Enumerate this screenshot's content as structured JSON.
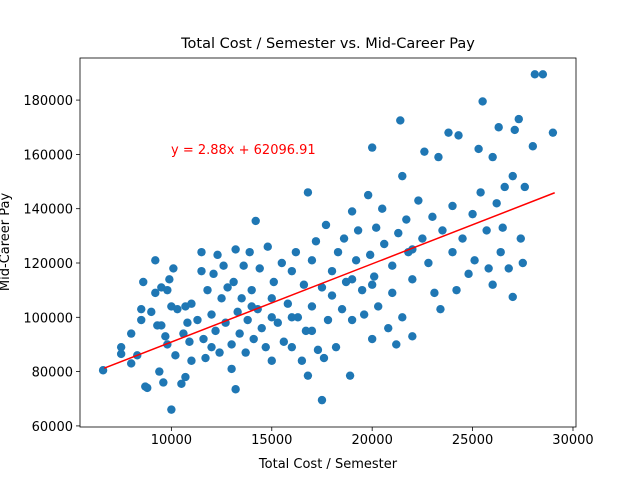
{
  "chart_data": {
    "type": "scatter",
    "title": "Total Cost / Semester vs. Mid-Career Pay",
    "x_label": "Total Cost / Semester",
    "y_label": "Mid-Career Pay",
    "annotation": "y = 2.88x + 62096.91",
    "annotation_color": "#ff0000",
    "xlim": [
      5450,
      30150
    ],
    "ylim": [
      59600,
      195500
    ],
    "xticks": [
      10000,
      15000,
      20000,
      25000,
      30000
    ],
    "yticks": [
      60000,
      80000,
      100000,
      120000,
      140000,
      160000,
      180000
    ],
    "series": [
      {
        "color": "#1f77b4",
        "x": [
          6600,
          7500,
          7500,
          8000,
          8000,
          8300,
          8500,
          8500,
          8600,
          8700,
          8800,
          9000,
          9200,
          9200,
          9300,
          9400,
          9500,
          9500,
          9600,
          9700,
          9800,
          9800,
          9900,
          10000,
          10000,
          10100,
          10200,
          10300,
          10500,
          10600,
          10700,
          10700,
          10800,
          10900,
          11000,
          11000,
          11300,
          11500,
          11500,
          11600,
          11700,
          11800,
          12000,
          12100,
          12200,
          12300,
          12400,
          12500,
          12600,
          12700,
          12800,
          13000,
          13000,
          13100,
          13200,
          13200,
          13300,
          13400,
          13500,
          13600,
          13700,
          13800,
          13900,
          14000,
          14100,
          14200,
          14300,
          14400,
          14500,
          14700,
          14800,
          15000,
          15000,
          15100,
          15300,
          15500,
          15600,
          15800,
          16000,
          16000,
          16200,
          16300,
          16500,
          16600,
          16700,
          16800,
          16800,
          17000,
          17000,
          17200,
          17300,
          17500,
          17500,
          17600,
          17700,
          17800,
          18000,
          18000,
          18200,
          18300,
          18500,
          18600,
          18700,
          18900,
          19000,
          19000,
          19200,
          19300,
          19500,
          19600,
          19800,
          19900,
          20000,
          20000,
          20100,
          20200,
          20300,
          20500,
          20600,
          20800,
          21000,
          21000,
          21200,
          21300,
          21400,
          21500,
          21500,
          21700,
          21800,
          22000,
          22000,
          22300,
          22500,
          22600,
          22800,
          23000,
          23100,
          23300,
          23400,
          23500,
          23800,
          24000,
          24000,
          24200,
          24300,
          24500,
          25000,
          25100,
          25300,
          25400,
          25500,
          25700,
          25800,
          26000,
          26000,
          26200,
          26300,
          26400,
          26600,
          26800,
          27000,
          27000,
          27100,
          27300,
          27400,
          27500,
          27600,
          28000,
          28100,
          28500,
          29000,
          26500,
          22000,
          19000,
          17000,
          15000,
          12000,
          14000,
          16000,
          20000,
          24800
        ],
        "values": [
          80500,
          89000,
          86500,
          94000,
          83000,
          86000,
          103000,
          99000,
          113000,
          74500,
          74000,
          102000,
          121000,
          109000,
          97000,
          80000,
          111000,
          97000,
          76000,
          93000,
          110000,
          90000,
          114000,
          104000,
          66000,
          118000,
          86000,
          103000,
          75500,
          94000,
          104000,
          78000,
          98000,
          91000,
          105000,
          84000,
          99000,
          124000,
          117000,
          92000,
          85000,
          110000,
          101000,
          116000,
          95000,
          123000,
          87000,
          107000,
          119000,
          98000,
          111000,
          90000,
          81000,
          113000,
          125000,
          73500,
          102000,
          94000,
          107000,
          119000,
          87000,
          99000,
          124000,
          110000,
          92000,
          135500,
          103000,
          118000,
          96000,
          89000,
          126000,
          107000,
          84000,
          113000,
          98000,
          120000,
          91000,
          105000,
          117000,
          89000,
          124000,
          100000,
          84000,
          112000,
          95000,
          146000,
          78500,
          121000,
          104000,
          128000,
          88000,
          69500,
          111000,
          85000,
          134000,
          99000,
          117000,
          108000,
          89000,
          124000,
          103000,
          129000,
          113000,
          78500,
          139000,
          99000,
          121000,
          132000,
          110000,
          101000,
          145000,
          123000,
          92000,
          162500,
          115000,
          133000,
          104000,
          140000,
          127000,
          96000,
          119000,
          109000,
          90000,
          131000,
          172500,
          152000,
          100000,
          136000,
          124000,
          114000,
          93000,
          143000,
          129000,
          161000,
          120000,
          137000,
          109000,
          159000,
          103000,
          132000,
          168000,
          141000,
          124000,
          110000,
          167000,
          129000,
          138000,
          121000,
          162000,
          146000,
          179500,
          132000,
          118000,
          159000,
          112000,
          142000,
          170000,
          124000,
          148000,
          118000,
          107500,
          152000,
          169000,
          173000,
          129000,
          120000,
          148000,
          163000,
          189500,
          189500,
          168000,
          133000,
          125000,
          114000,
          95000,
          100000,
          89000,
          104000,
          100000,
          112000,
          116000
        ]
      }
    ],
    "fit": {
      "color": "#ff0000",
      "x": [
        6652,
        29089
      ],
      "values": [
        81255,
        145873
      ]
    }
  }
}
